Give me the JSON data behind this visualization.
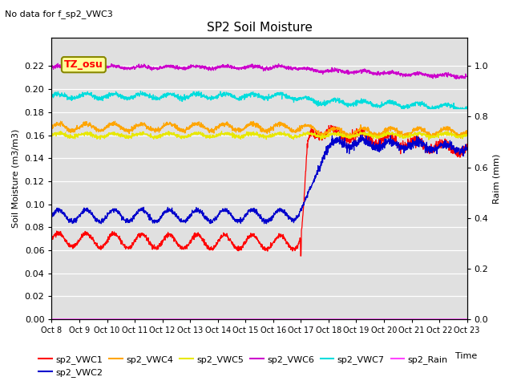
{
  "title": "SP2 Soil Moisture",
  "subtitle": "No data for f_sp2_VWC3",
  "ylabel_left": "Soil Moisture (m3/m3)",
  "ylabel_right": "Raim (mm)",
  "xlabel": "Time",
  "tz_label": "TZ_osu",
  "ylim_left": [
    0.0,
    0.2445
  ],
  "ylim_right": [
    0.0,
    1.111
  ],
  "xtick_labels": [
    "Oct 8",
    "Oct 9",
    "Oct 10",
    "Oct 11",
    "Oct 12",
    "Oct 13",
    "Oct 14",
    "Oct 15",
    "Oct 16",
    "Oct 17",
    "Oct 18",
    "Oct 19",
    "Oct 20",
    "Oct 21",
    "Oct 22",
    "Oct 23"
  ],
  "ytick_left": [
    0.0,
    0.02,
    0.04,
    0.06,
    0.08,
    0.1,
    0.12,
    0.14,
    0.16,
    0.18,
    0.2,
    0.22
  ],
  "ytick_right": [
    0.0,
    0.2,
    0.4,
    0.6,
    0.8,
    1.0
  ],
  "bg_color": "#e0e0e0",
  "colors": {
    "sp2_VWC1": "#ff0000",
    "sp2_VWC2": "#0000cc",
    "sp2_VWC4": "#ffa500",
    "sp2_VWC5": "#e8e800",
    "sp2_VWC6": "#cc00cc",
    "sp2_VWC7": "#00dddd",
    "sp2_Rain": "#ff44ff"
  }
}
